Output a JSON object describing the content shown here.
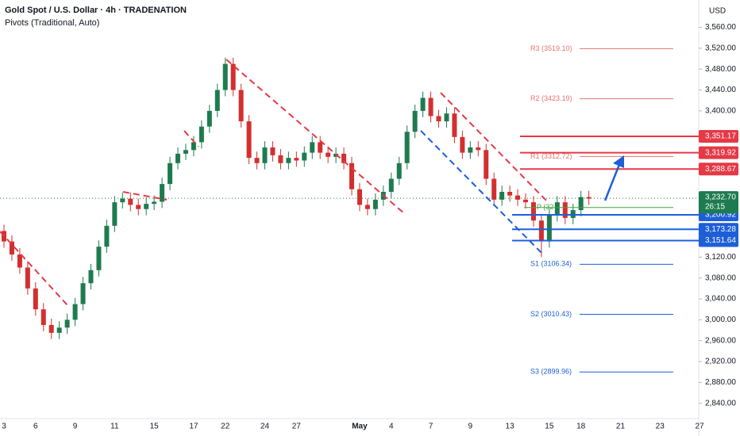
{
  "chart_data": {
    "type": "candlestick",
    "title": "Gold Spot / U.S. Dollar · 4h · TRADENATION",
    "subtitle": "Pivots (Traditional, Auto)",
    "y_axis_label": "USD",
    "categories": [
      "3",
      null,
      null,
      null,
      "6",
      null,
      null,
      null,
      null,
      "9",
      null,
      null,
      null,
      null,
      "11",
      null,
      null,
      null,
      null,
      "15",
      null,
      null,
      null,
      null,
      "17",
      null,
      null,
      null,
      "22",
      null,
      null,
      null,
      null,
      "24",
      null,
      null,
      null,
      "27",
      null,
      null,
      null,
      null,
      null,
      null,
      null,
      "May",
      null,
      null,
      null,
      "4",
      null,
      null,
      null,
      null,
      "7",
      null,
      null,
      null,
      null,
      "9",
      null,
      null,
      null,
      null,
      "13",
      null,
      null,
      null,
      null,
      "15",
      null,
      null,
      null,
      "18",
      null,
      null,
      null,
      null,
      "21",
      null,
      null,
      null,
      null,
      "23",
      null,
      null,
      null,
      null,
      "27"
    ],
    "open": [
      3170,
      3150,
      3125,
      3100,
      3060,
      3020,
      2990,
      2975,
      2985,
      3000,
      3030,
      3070,
      3095,
      3140,
      3180,
      3225,
      3232,
      3220,
      3212,
      3222,
      3226,
      3260,
      3300,
      3318,
      3325,
      3340,
      3370,
      3400,
      3440,
      3490,
      3440,
      3380,
      3310,
      3300,
      3330,
      3315,
      3300,
      3310,
      3305,
      3320,
      3340,
      3320,
      3312,
      3318,
      3300,
      3250,
      3220,
      3212,
      3230,
      3245,
      3270,
      3300,
      3360,
      3400,
      3425,
      3390,
      3380,
      3395,
      3350,
      3320,
      3330,
      3325,
      3270,
      3230,
      3245,
      3238,
      3230,
      3225,
      3190,
      3150,
      3200,
      3225,
      3195,
      3210,
      3235,
      null,
      null,
      null,
      null,
      null,
      null,
      null,
      null,
      null,
      null,
      null,
      null,
      null,
      null
    ],
    "high": [
      3182,
      3162,
      3137,
      3112,
      3072,
      3032,
      3002,
      2997,
      3012,
      3042,
      3082,
      3107,
      3152,
      3192,
      3237,
      3244,
      3244,
      3232,
      3234,
      3238,
      3272,
      3312,
      3330,
      3337,
      3352,
      3382,
      3412,
      3452,
      3502,
      3502,
      3452,
      3392,
      3322,
      3342,
      3342,
      3327,
      3322,
      3322,
      3332,
      3352,
      3352,
      3332,
      3330,
      3330,
      3312,
      3262,
      3232,
      3242,
      3257,
      3282,
      3312,
      3372,
      3412,
      3437,
      3437,
      3402,
      3407,
      3407,
      3362,
      3342,
      3342,
      3337,
      3282,
      3257,
      3257,
      3250,
      3242,
      3237,
      3202,
      3212,
      3237,
      3237,
      3222,
      3247,
      3247,
      null,
      null,
      null,
      null,
      null,
      null,
      null,
      null,
      null,
      null,
      null,
      null,
      null,
      null
    ],
    "low": [
      3138,
      3113,
      3088,
      3048,
      3008,
      2978,
      2963,
      2963,
      2973,
      2988,
      3018,
      3058,
      3083,
      3128,
      3168,
      3213,
      3208,
      3200,
      3200,
      3210,
      3214,
      3248,
      3288,
      3306,
      3313,
      3328,
      3358,
      3388,
      3428,
      3428,
      3368,
      3298,
      3288,
      3288,
      3303,
      3288,
      3288,
      3293,
      3293,
      3308,
      3308,
      3300,
      3300,
      3288,
      3238,
      3208,
      3200,
      3200,
      3218,
      3233,
      3258,
      3288,
      3348,
      3388,
      3378,
      3368,
      3368,
      3338,
      3308,
      3308,
      3313,
      3258,
      3218,
      3218,
      3226,
      3218,
      3213,
      3178,
      3120,
      3138,
      3188,
      3183,
      3183,
      3198,
      3220,
      null,
      null,
      null,
      null,
      null,
      null,
      null,
      null,
      null,
      null,
      null,
      null,
      null,
      null
    ],
    "close": [
      3150,
      3125,
      3100,
      3060,
      3020,
      2990,
      2975,
      2985,
      3000,
      3030,
      3070,
      3095,
      3140,
      3180,
      3225,
      3232,
      3220,
      3212,
      3222,
      3226,
      3260,
      3300,
      3318,
      3325,
      3340,
      3370,
      3400,
      3440,
      3490,
      3440,
      3380,
      3310,
      3300,
      3330,
      3315,
      3300,
      3310,
      3305,
      3320,
      3340,
      3320,
      3312,
      3318,
      3300,
      3250,
      3220,
      3212,
      3230,
      3245,
      3270,
      3300,
      3360,
      3400,
      3425,
      3390,
      3380,
      3395,
      3350,
      3320,
      3330,
      3325,
      3270,
      3230,
      3245,
      3238,
      3230,
      3225,
      3190,
      3150,
      3200,
      3225,
      3195,
      3210,
      3235,
      3232,
      null,
      null,
      null,
      null,
      null,
      null,
      null,
      null,
      null,
      null,
      null,
      null,
      null,
      null
    ],
    "up_color": "#1e7b4f",
    "down_color": "#d32f2f",
    "ylim": [
      2826,
      3582
    ],
    "yticks": [
      {
        "value": 3560,
        "label": "3,560.00"
      },
      {
        "value": 3520,
        "label": "3,520.00"
      },
      {
        "value": 3480,
        "label": "3,480.00"
      },
      {
        "value": 3440,
        "label": "3,440.00"
      },
      {
        "value": 3400,
        "label": "3,400.00"
      },
      {
        "value": 3120,
        "label": "3,120.00"
      },
      {
        "value": 3080,
        "label": "3,080.00"
      },
      {
        "value": 3040,
        "label": "3,040.00"
      },
      {
        "value": 3000,
        "label": "3,000.00"
      },
      {
        "value": 2960,
        "label": "2,960.00"
      },
      {
        "value": 2920,
        "label": "2,920.00"
      },
      {
        "value": 2880,
        "label": "2,880.00"
      },
      {
        "value": 2840,
        "label": "2,840.00"
      }
    ],
    "pivots": [
      {
        "label": "R3 (3519.10)",
        "value": 3519.1,
        "color": "#e57373"
      },
      {
        "label": "R2 (3423.19)",
        "value": 3423.19,
        "color": "#e57373"
      },
      {
        "label": "R1 (3312.72)",
        "value": 3312.72,
        "color": "#e57373"
      },
      {
        "label": "P (32",
        "value": 3215,
        "color": "#43a047"
      },
      {
        "label": "S1 (3106.34)",
        "value": 3106.34,
        "color": "#1e5fd8"
      },
      {
        "label": "S2 (3010.43)",
        "value": 3010.43,
        "color": "#1e5fd8"
      },
      {
        "label": "S3 (2899.96)",
        "value": 2899.96,
        "color": "#1e5fd8"
      }
    ],
    "levels": [
      {
        "value": 3351.17,
        "label": "3,351.17",
        "color": "#e53946"
      },
      {
        "value": 3319.92,
        "label": "3,319.92",
        "color": "#e53946"
      },
      {
        "value": 3288.67,
        "label": "3,288.67",
        "color": "#e53946"
      },
      {
        "value": 3200.92,
        "label": "3,200.92",
        "color": "#1e5fd8"
      },
      {
        "value": 3173.28,
        "label": "3,173.28",
        "color": "#1e5fd8"
      },
      {
        "value": 3151.64,
        "label": "3,151.64",
        "color": "#1e5fd8"
      }
    ],
    "last_price": {
      "value": 3232.7,
      "label": "3,232.70",
      "countdown": "26:15",
      "color": "#1e7b4f"
    }
  }
}
